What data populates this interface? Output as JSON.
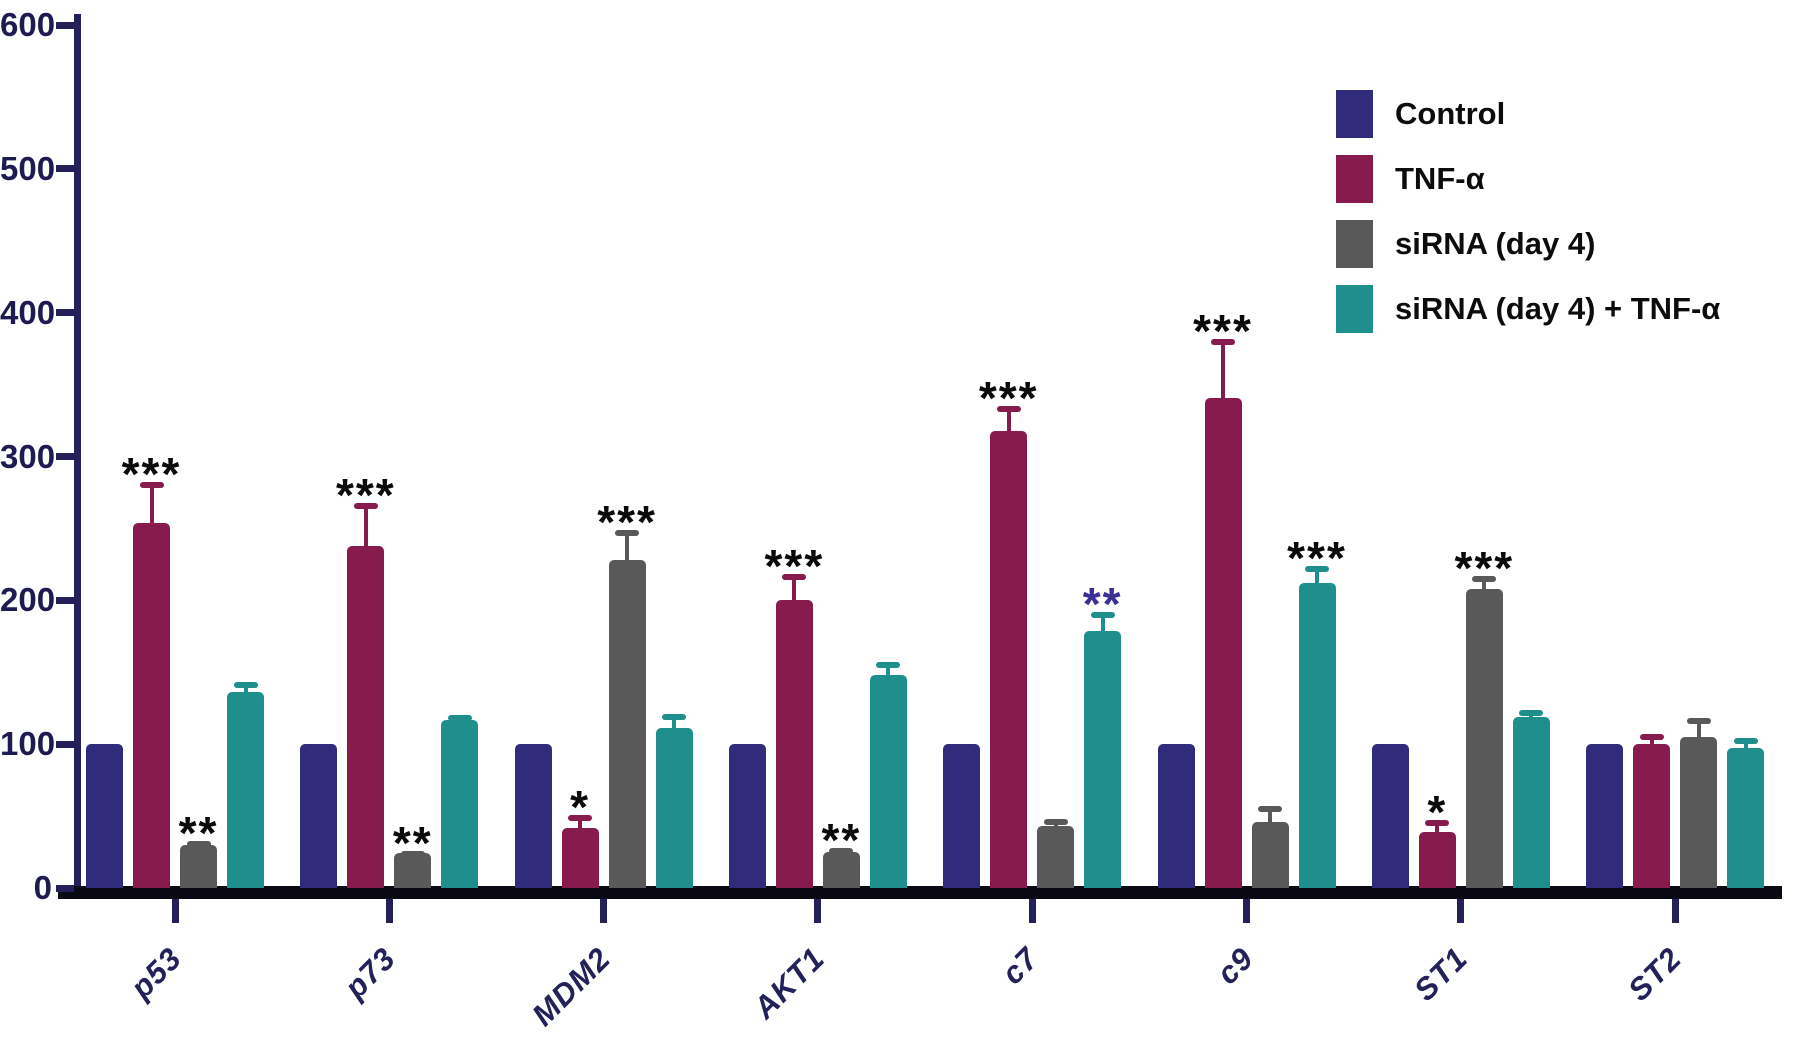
{
  "chart_data": {
    "type": "bar",
    "title": "",
    "xlabel": "",
    "ylabel": "",
    "ylim": [
      0,
      600
    ],
    "yticks": [
      0,
      100,
      200,
      300,
      400,
      500,
      600
    ],
    "grid": false,
    "legend_position": "upper right",
    "categories": [
      "p53",
      "p73",
      "MDM2",
      "AKT1",
      "c7",
      "c9",
      "ST1",
      "ST2"
    ],
    "series": [
      {
        "name": "Control",
        "color": "#312b7b",
        "values": [
          100,
          100,
          100,
          100,
          100,
          100,
          100,
          100
        ],
        "errors": [
          0,
          0,
          0,
          0,
          0,
          0,
          0,
          0
        ],
        "sig": [
          "",
          "",
          "",
          "",
          "",
          "",
          "",
          ""
        ],
        "sig_colors": [
          "",
          "",
          "",
          "",
          "",
          "",
          "",
          ""
        ]
      },
      {
        "name": "TNF-α",
        "color": "#871b4d",
        "values": [
          254,
          238,
          42,
          200,
          318,
          341,
          39,
          100
        ],
        "errors": [
          28,
          30,
          9,
          18,
          17,
          41,
          8,
          7
        ],
        "sig": [
          "***",
          "***",
          "*",
          "***",
          "***",
          "***",
          "*",
          ""
        ],
        "sig_colors": [
          "#0a0a0a",
          "#0a0a0a",
          "#0a0a0a",
          "#0a0a0a",
          "#0a0a0a",
          "#0a0a0a",
          "#0a0a0a",
          ""
        ]
      },
      {
        "name": "siRNA (day 4)",
        "color": "#595959",
        "values": [
          30,
          24,
          228,
          25,
          43,
          46,
          208,
          105
        ],
        "errors": [
          3,
          2,
          21,
          3,
          5,
          11,
          9,
          13
        ],
        "sig": [
          "**",
          "**",
          "***",
          "**",
          "",
          "",
          "***",
          ""
        ],
        "sig_colors": [
          "#0a0a0a",
          "#0a0a0a",
          "#0a0a0a",
          "#0a0a0a",
          "",
          "",
          "#0a0a0a",
          ""
        ]
      },
      {
        "name": "siRNA (day 4) + TNF-α",
        "color": "#1e8f8c",
        "values": [
          136,
          117,
          111,
          148,
          179,
          212,
          119,
          97
        ],
        "errors": [
          7,
          3,
          10,
          9,
          13,
          12,
          5,
          7
        ],
        "sig": [
          "",
          "",
          "",
          "",
          "**",
          "***",
          "",
          ""
        ],
        "sig_colors": [
          "",
          "",
          "",
          "",
          "#3a2f93",
          "#0a0a0a",
          "",
          ""
        ]
      }
    ]
  },
  "legend": {
    "items": [
      "Control",
      "TNF-α",
      "siRNA (day 4)",
      "siRNA (day 4) + TNF-α"
    ]
  }
}
